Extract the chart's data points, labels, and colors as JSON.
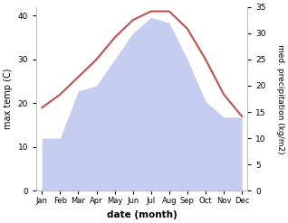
{
  "months": [
    "Jan",
    "Feb",
    "Mar",
    "Apr",
    "May",
    "Jun",
    "Jul",
    "Aug",
    "Sep",
    "Oct",
    "Nov",
    "Dec"
  ],
  "temperature": [
    19,
    22,
    26,
    30,
    35,
    39,
    41,
    41,
    37,
    30,
    22,
    17
  ],
  "precipitation": [
    10,
    10,
    19,
    20,
    25,
    30,
    33,
    32,
    25,
    17,
    14,
    14
  ],
  "temp_color": "#c0504d",
  "precip_fill_color": "#c5cdf0",
  "temp_ylim": [
    0,
    42
  ],
  "precip_ylim": [
    0,
    35
  ],
  "temp_yticks": [
    0,
    10,
    20,
    30,
    40
  ],
  "precip_yticks": [
    0,
    5,
    10,
    15,
    20,
    25,
    30,
    35
  ],
  "xlabel": "date (month)",
  "ylabel_left": "max temp (C)",
  "ylabel_right": "med. precipitation (kg/m2)",
  "background_color": "#ffffff",
  "spine_color": "#bbbbbb"
}
